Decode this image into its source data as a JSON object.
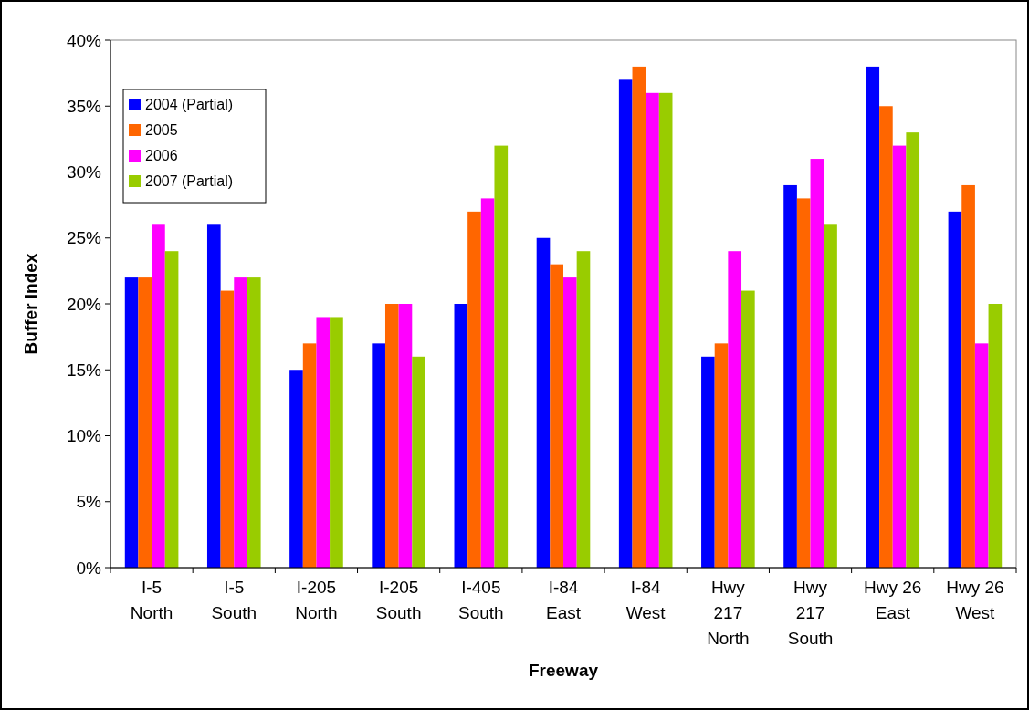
{
  "chart_data": {
    "type": "bar",
    "xlabel": "Freeway",
    "ylabel": "Buffer Index",
    "categories": [
      "I-5\nNorth",
      "I-5\nSouth",
      "I-205\nNorth",
      "I-205\nSouth",
      "I-405\nSouth",
      "I-84\nEast",
      "I-84\nWest",
      "Hwy\n217\nNorth",
      "Hwy\n217\nSouth",
      "Hwy 26\nEast",
      "Hwy 26\nWest"
    ],
    "series": [
      {
        "name": "2004 (Partial)",
        "color": "#0000ff",
        "values": [
          22,
          26,
          15,
          17,
          20,
          25,
          37,
          16,
          29,
          38,
          27
        ]
      },
      {
        "name": "2005",
        "color": "#ff6600",
        "values": [
          22,
          21,
          17,
          20,
          27,
          23,
          38,
          17,
          28,
          35,
          29
        ]
      },
      {
        "name": "2006",
        "color": "#ff00ff",
        "values": [
          26,
          22,
          19,
          20,
          28,
          22,
          36,
          24,
          31,
          32,
          17
        ]
      },
      {
        "name": "2007 (Partial)",
        "color": "#99cc00",
        "values": [
          24,
          22,
          19,
          16,
          32,
          24,
          36,
          21,
          26,
          33,
          20
        ]
      }
    ],
    "ylim": [
      0,
      40
    ],
    "yticks": [
      {
        "value": 0,
        "label": "0%"
      },
      {
        "value": 5,
        "label": "5%"
      },
      {
        "value": 10,
        "label": "10%"
      },
      {
        "value": 15,
        "label": "15%"
      },
      {
        "value": 20,
        "label": "20%"
      },
      {
        "value": 25,
        "label": "25%"
      },
      {
        "value": 30,
        "label": "30%"
      },
      {
        "value": 35,
        "label": "35%"
      },
      {
        "value": 40,
        "label": "40%"
      }
    ],
    "grid": false,
    "legend": "top left"
  }
}
